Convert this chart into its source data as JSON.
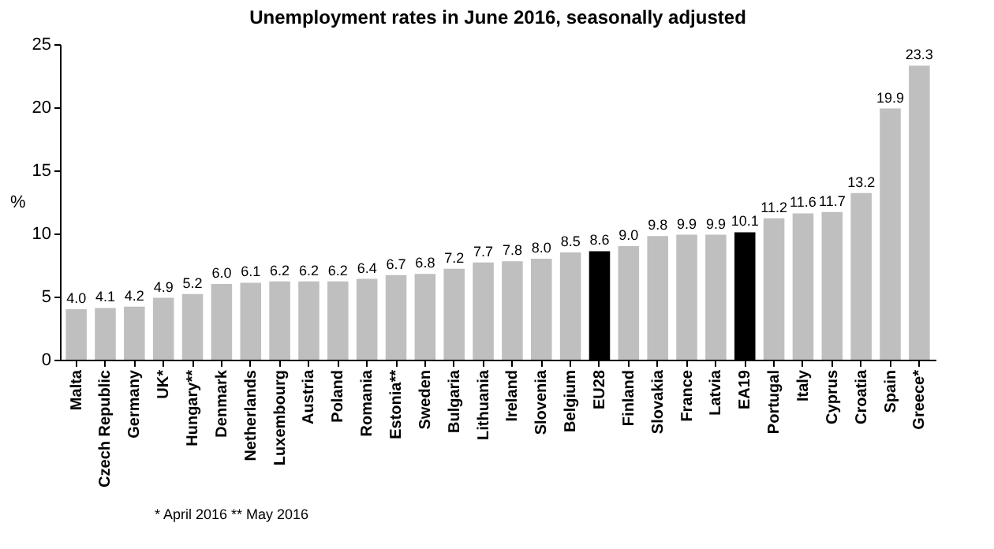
{
  "chart_data": {
    "type": "bar",
    "title": "Unemployment rates in June 2016, seasonally adjusted",
    "ylabel": "%",
    "categories": [
      "Malta",
      "Czech Republic",
      "Germany",
      "UK*",
      "Hungary**",
      "Denmark",
      "Netherlands",
      "Luxembourg",
      "Austria",
      "Poland",
      "Romania",
      "Estonia**",
      "Sweden",
      "Bulgaria",
      "Lithuania",
      "Ireland",
      "Slovenia",
      "Belgium",
      "EU28",
      "Finland",
      "Slovakia",
      "France",
      "Latvia",
      "EA19",
      "Portugal",
      "Italy",
      "Cyprus",
      "Croatia",
      "Spain",
      "Greece*"
    ],
    "values": [
      4.0,
      4.1,
      4.2,
      4.9,
      5.2,
      6.0,
      6.1,
      6.2,
      6.2,
      6.2,
      6.4,
      6.7,
      6.8,
      7.2,
      7.7,
      7.8,
      8.0,
      8.5,
      8.6,
      9.0,
      9.8,
      9.9,
      9.9,
      10.1,
      11.2,
      11.6,
      11.7,
      13.2,
      19.9,
      23.3
    ],
    "colors": [
      "#bfbfbf",
      "#bfbfbf",
      "#bfbfbf",
      "#bfbfbf",
      "#bfbfbf",
      "#bfbfbf",
      "#bfbfbf",
      "#bfbfbf",
      "#bfbfbf",
      "#bfbfbf",
      "#bfbfbf",
      "#bfbfbf",
      "#bfbfbf",
      "#bfbfbf",
      "#bfbfbf",
      "#bfbfbf",
      "#bfbfbf",
      "#bfbfbf",
      "#000000",
      "#bfbfbf",
      "#bfbfbf",
      "#bfbfbf",
      "#bfbfbf",
      "#000000",
      "#bfbfbf",
      "#bfbfbf",
      "#bfbfbf",
      "#bfbfbf",
      "#bfbfbf",
      "#bfbfbf"
    ],
    "value_labels": [
      "4.0",
      "4.1",
      "4.2",
      "4.9",
      "5.2",
      "6.0",
      "6.1",
      "6.2",
      "6.2",
      "6.2",
      "6.4",
      "6.7",
      "6.8",
      "7.2",
      "7.7",
      "7.8",
      "8.0",
      "8.5",
      "8.6",
      "9.0",
      "9.8",
      "9.9",
      "9.9",
      "10.1",
      "11.2",
      "11.6",
      "11.7",
      "13.2",
      "19.9",
      "23.3"
    ],
    "ylim": [
      0,
      25
    ],
    "yticks": [
      0,
      5,
      10,
      15,
      20,
      25
    ],
    "grid": false,
    "annotations": [
      "* April 2016   ** May 2016"
    ]
  }
}
